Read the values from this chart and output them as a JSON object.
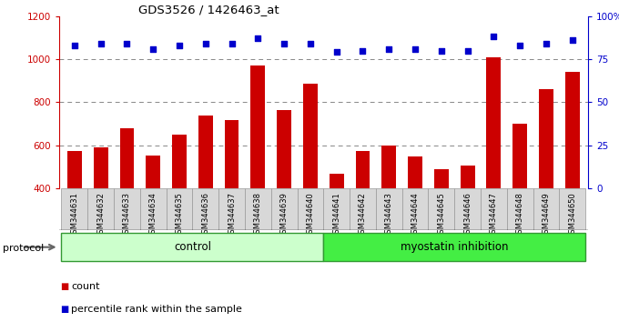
{
  "title": "GDS3526 / 1426463_at",
  "samples": [
    "GSM344631",
    "GSM344632",
    "GSM344633",
    "GSM344634",
    "GSM344635",
    "GSM344636",
    "GSM344637",
    "GSM344638",
    "GSM344639",
    "GSM344640",
    "GSM344641",
    "GSM344642",
    "GSM344643",
    "GSM344644",
    "GSM344645",
    "GSM344646",
    "GSM344647",
    "GSM344648",
    "GSM344649",
    "GSM344650"
  ],
  "counts": [
    575,
    592,
    678,
    553,
    648,
    738,
    718,
    970,
    765,
    885,
    467,
    572,
    600,
    547,
    487,
    505,
    1010,
    700,
    862,
    940
  ],
  "percentile_ranks": [
    83,
    84,
    84,
    81,
    83,
    84,
    84,
    87,
    84,
    84,
    79,
    80,
    81,
    81,
    80,
    80,
    88,
    83,
    84,
    86
  ],
  "control_count": 10,
  "ylim_left": [
    400,
    1200
  ],
  "ylim_right": [
    0,
    100
  ],
  "yticks_left": [
    400,
    600,
    800,
    1000,
    1200
  ],
  "yticks_right": [
    0,
    25,
    50,
    75,
    100
  ],
  "bar_color": "#cc0000",
  "dot_color": "#0000cc",
  "control_label": "control",
  "treatment_label": "myostatin inhibition",
  "protocol_label": "protocol",
  "legend_count": "count",
  "legend_pct": "percentile rank within the sample",
  "control_fill": "#ccffcc",
  "treatment_fill": "#44ee44",
  "xtick_bg": "#cccccc",
  "grid_color": "#888888"
}
